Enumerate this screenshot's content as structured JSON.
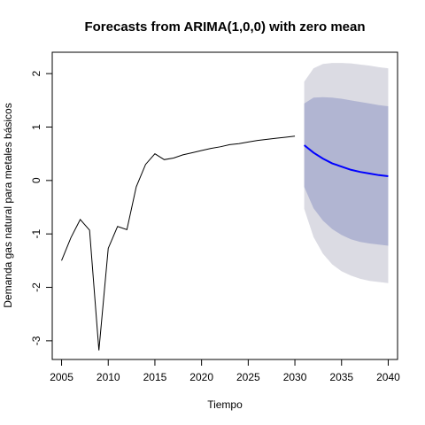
{
  "chart_data": {
    "type": "line",
    "title": "Forecasts from ARIMA(1,0,0) with zero mean",
    "xlabel": "Tiempo",
    "ylabel": "Demanda gas natural para metales básicos",
    "xlim": [
      2004,
      2041
    ],
    "ylim": [
      -3.35,
      2.4
    ],
    "xticks": [
      2005,
      2010,
      2015,
      2020,
      2025,
      2030,
      2035,
      2040
    ],
    "yticks": [
      -3,
      -2,
      -1,
      0,
      1,
      2
    ],
    "grid": false,
    "legend": "none",
    "colors": {
      "observed": "#000000",
      "forecast": "#0000ff",
      "band80": "#b1b5d2",
      "band95": "#dbdbe3",
      "axis": "#000000"
    },
    "series": [
      {
        "role": "observed",
        "x": [
          2005,
          2006,
          2007,
          2008,
          2009,
          2010,
          2011,
          2012,
          2013,
          2014,
          2015,
          2016,
          2017,
          2018,
          2019,
          2020,
          2021,
          2022,
          2023,
          2024,
          2025,
          2026,
          2027,
          2028,
          2029,
          2030
        ],
        "values": [
          -1.5,
          -1.07,
          -0.73,
          -0.93,
          -3.18,
          -1.27,
          -0.86,
          -0.92,
          -0.12,
          0.3,
          0.5,
          0.39,
          0.42,
          0.48,
          0.52,
          0.56,
          0.6,
          0.63,
          0.67,
          0.69,
          0.72,
          0.75,
          0.77,
          0.79,
          0.81,
          0.83
        ]
      },
      {
        "role": "forecast",
        "x": [
          2031,
          2032,
          2033,
          2034,
          2035,
          2036,
          2037,
          2038,
          2039,
          2040
        ],
        "values": [
          0.66,
          0.52,
          0.41,
          0.32,
          0.26,
          0.2,
          0.16,
          0.13,
          0.1,
          0.08
        ],
        "lo80": [
          -0.12,
          -0.52,
          -0.75,
          -0.91,
          -1.02,
          -1.1,
          -1.15,
          -1.18,
          -1.2,
          -1.22
        ],
        "hi80": [
          1.44,
          1.55,
          1.56,
          1.55,
          1.53,
          1.5,
          1.47,
          1.44,
          1.41,
          1.39
        ],
        "lo95": [
          -0.53,
          -1.06,
          -1.37,
          -1.57,
          -1.7,
          -1.78,
          -1.84,
          -1.88,
          -1.9,
          -1.92
        ],
        "hi95": [
          1.85,
          2.1,
          2.18,
          2.2,
          2.2,
          2.19,
          2.17,
          2.15,
          2.12,
          2.1
        ]
      }
    ]
  }
}
